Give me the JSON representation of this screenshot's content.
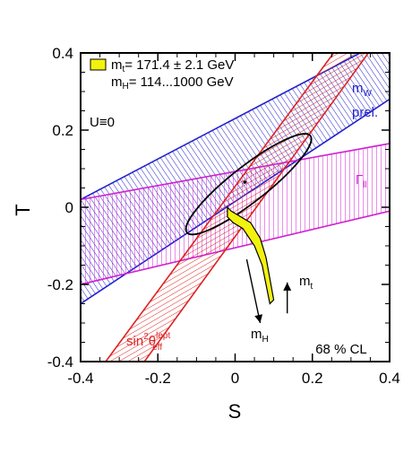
{
  "chart_data": {
    "type": "contour",
    "xlabel": "S",
    "ylabel": "T",
    "xlim": [
      -0.4,
      0.4
    ],
    "ylim": [
      -0.4,
      0.4
    ],
    "xticks": [
      "-0.4",
      "-0.2",
      "0",
      "0.2",
      "0.4"
    ],
    "yticks": [
      "-0.4",
      "-0.2",
      "0",
      "0.2",
      "0.4"
    ],
    "grid": false,
    "legend": {
      "swatch_color": "#f2f20f",
      "line1": "m",
      "line1_sub": "t",
      "line1_rest": "= 171.4 ± 2.1 GeV",
      "line2": "m",
      "line2_sub": "H",
      "line2_rest": "= 114...1000 GeV"
    },
    "constraint": "U≡0",
    "confidence_label": "68 % CL",
    "bands": [
      {
        "id": "mW",
        "label": "m",
        "label_sub": "W",
        "label2": "prel.",
        "color": "#2222cc",
        "corners": [
          [
            -0.4,
            0.02
          ],
          [
            -0.4,
            -0.25
          ],
          [
            0.4,
            0.28
          ],
          [
            0.4,
            0.44
          ]
        ]
      },
      {
        "id": "gamma_ll",
        "label": "Γ",
        "label_sub": "ll",
        "color": "#d020d0",
        "corners": [
          [
            -0.4,
            0.02
          ],
          [
            -0.4,
            -0.2
          ],
          [
            0.4,
            -0.01
          ],
          [
            0.4,
            0.165
          ]
        ]
      },
      {
        "id": "sin2theta",
        "label": "sin",
        "label_sup": "2",
        "label_mid": "θ",
        "label_sup2": "lept",
        "label_sub2": "eff",
        "color": "#dd2222",
        "corners": [
          [
            -0.335,
            -0.4
          ],
          [
            -0.235,
            -0.4
          ],
          [
            0.345,
            0.4
          ],
          [
            0.255,
            0.4
          ]
        ]
      }
    ],
    "ellipse": {
      "center": [
        0.035,
        0.06
      ],
      "semi_major": 0.203,
      "semi_minor": 0.046,
      "angle_deg": 38,
      "color": "#000000"
    },
    "central_point": [
      0.025,
      0.065
    ],
    "sm_prediction": {
      "color": "#f2f20f",
      "outline": [
        [
          -0.02,
          0.0
        ],
        [
          -0.01,
          -0.01
        ],
        [
          0.04,
          -0.04
        ],
        [
          0.065,
          -0.08
        ],
        [
          0.08,
          -0.13
        ],
        [
          0.1,
          -0.24
        ],
        [
          0.09,
          -0.25
        ],
        [
          0.07,
          -0.15
        ],
        [
          0.05,
          -0.1
        ],
        [
          0.02,
          -0.055
        ],
        [
          -0.005,
          -0.04
        ],
        [
          -0.02,
          -0.025
        ]
      ]
    },
    "arrows": [
      {
        "id": "mH",
        "label": "m",
        "label_sub": "H",
        "from": [
          0.03,
          -0.135
        ],
        "to": [
          0.065,
          -0.3
        ]
      },
      {
        "id": "mt",
        "label": "m",
        "label_sub": "t",
        "from": [
          0.135,
          -0.275
        ],
        "to": [
          0.135,
          -0.195
        ]
      }
    ]
  }
}
